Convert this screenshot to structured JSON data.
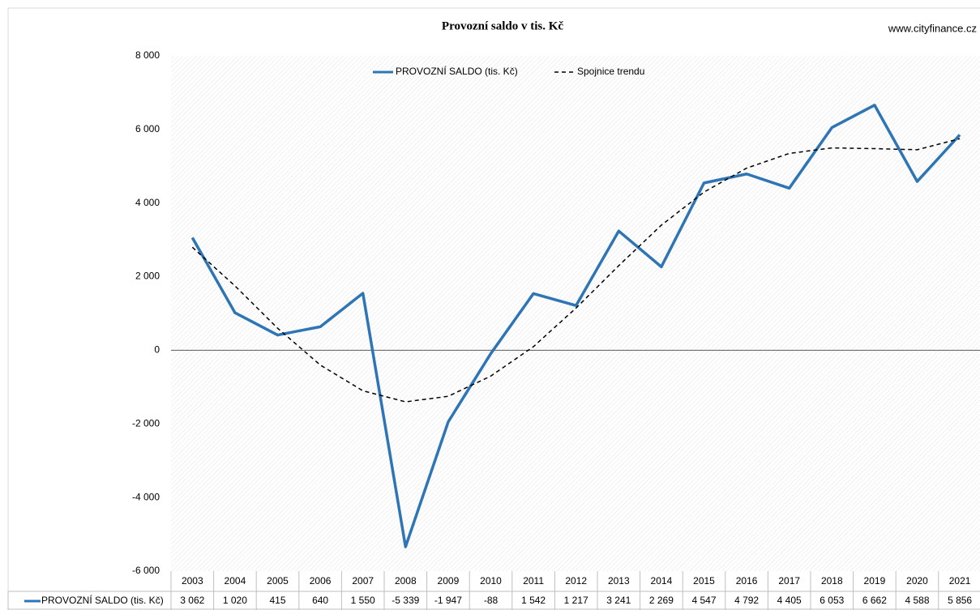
{
  "chart_data": {
    "type": "line",
    "title": "Provozní saldo v tis. Kč",
    "annotation": "www.cityfinance.cz",
    "categories": [
      "2003",
      "2004",
      "2005",
      "2006",
      "2007",
      "2008",
      "2009",
      "2010",
      "2011",
      "2012",
      "2013",
      "2014",
      "2015",
      "2016",
      "2017",
      "2018",
      "2019",
      "2020",
      "2021"
    ],
    "series": [
      {
        "name": "PROVOZNÍ SALDO (tis. Kč)",
        "color": "#2e75b6",
        "line_style": "solid",
        "values": [
          3062,
          1020,
          415,
          640,
          1550,
          -5339,
          -1947,
          -88,
          1542,
          1217,
          3241,
          2269,
          4547,
          4792,
          4405,
          6053,
          6662,
          4588,
          5856
        ],
        "value_labels": [
          "3 062",
          "1 020",
          "415",
          "640",
          "1 550",
          "-5 339",
          "-1 947",
          "-88",
          "1 542",
          "1 217",
          "3 241",
          "2 269",
          "4 547",
          "4 792",
          "4 405",
          "6 053",
          "6 662",
          "4 588",
          "5 856"
        ]
      },
      {
        "name": "Spojnice trendu",
        "color": "#000000",
        "line_style": "dashed",
        "values": [
          2800,
          1750,
          600,
          -400,
          -1100,
          -1400,
          -1250,
          -700,
          100,
          1150,
          2300,
          3400,
          4300,
          4950,
          5350,
          5500,
          5480,
          5450,
          5750
        ]
      }
    ],
    "ylim": [
      -6000,
      8000
    ],
    "yticks": [
      {
        "value": -6000,
        "label": "-6 000"
      },
      {
        "value": -4000,
        "label": "-4 000"
      },
      {
        "value": -2000,
        "label": "-2 000"
      },
      0,
      {
        "value": 2000,
        "label": "2 000"
      },
      {
        "value": 4000,
        "label": "4 000"
      },
      {
        "value": 6000,
        "label": "6 000"
      },
      {
        "value": 8000,
        "label": "8 000"
      }
    ],
    "legend": "top",
    "data_table": true
  }
}
